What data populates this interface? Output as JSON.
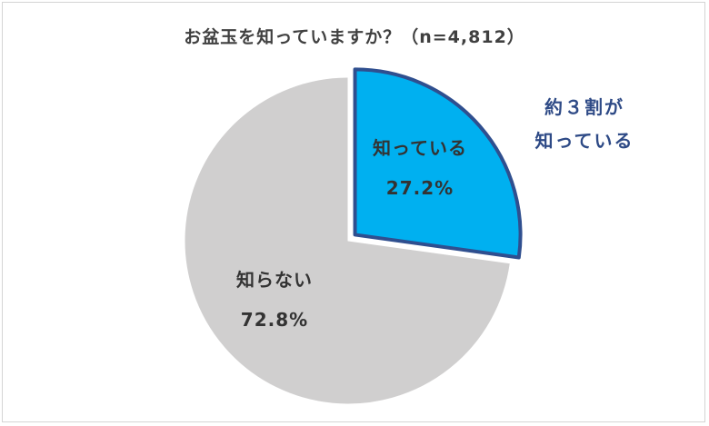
{
  "chart_data": {
    "type": "pie",
    "title": "お盆玉を知っていますか？（n=4,812）",
    "slices": [
      {
        "label": "知っている",
        "value": 27.2,
        "display": "27.2%",
        "color": "#00b0f0",
        "stroke": "#2f4f8f"
      },
      {
        "label": "知らない",
        "value": 72.8,
        "display": "72.8%",
        "color": "#d0cfcf",
        "stroke": "#ffffff"
      }
    ],
    "annotation": [
      "約３割が",
      "知っている"
    ]
  }
}
